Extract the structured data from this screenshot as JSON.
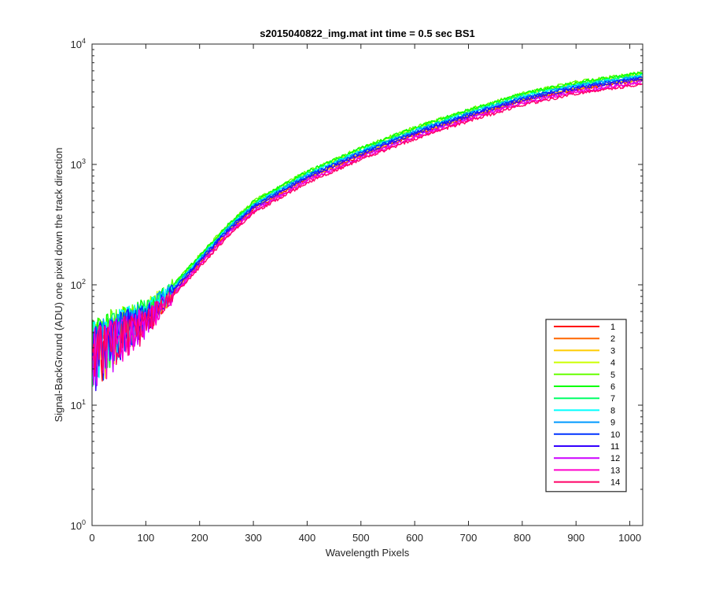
{
  "chart_data": {
    "type": "line",
    "title": "s2015040822_img.mat int time = 0.5 sec   BS1",
    "xlabel": "Wavelength Pixels",
    "ylabel": "Signal-BackGround (ADU) one pixel down the track direction",
    "xlim": [
      0,
      1024
    ],
    "ylim": [
      1,
      10000
    ],
    "yscale": "log",
    "grid": false,
    "legend_position": "lower-right",
    "x_ticks": [
      0,
      100,
      200,
      300,
      400,
      500,
      600,
      700,
      800,
      900,
      1000
    ],
    "y_ticks": [
      1,
      10,
      100,
      1000,
      10000
    ],
    "y_tick_labels": [
      {
        "base": "10",
        "exp": "0"
      },
      {
        "base": "10",
        "exp": "1"
      },
      {
        "base": "10",
        "exp": "2"
      },
      {
        "base": "10",
        "exp": "3"
      },
      {
        "base": "10",
        "exp": "4"
      }
    ],
    "profile_x": [
      0,
      50,
      100,
      150,
      200,
      250,
      300,
      400,
      500,
      600,
      700,
      800,
      900,
      1000,
      1024
    ],
    "profile_y": [
      30,
      42,
      55,
      90,
      160,
      280,
      450,
      800,
      1250,
      1850,
      2600,
      3550,
      4400,
      5100,
      5300
    ],
    "series": [
      {
        "name": "1",
        "color": "#ff0000",
        "scale": 0.95
      },
      {
        "name": "2",
        "color": "#ff6600",
        "scale": 0.96
      },
      {
        "name": "3",
        "color": "#ffcc00",
        "scale": 0.98
      },
      {
        "name": "4",
        "color": "#ccff00",
        "scale": 1.07
      },
      {
        "name": "5",
        "color": "#66ff00",
        "scale": 1.1
      },
      {
        "name": "6",
        "color": "#00ff00",
        "scale": 1.09
      },
      {
        "name": "7",
        "color": "#00ff66",
        "scale": 1.05
      },
      {
        "name": "8",
        "color": "#00ffff",
        "scale": 1.03
      },
      {
        "name": "9",
        "color": "#0099ff",
        "scale": 1.02
      },
      {
        "name": "10",
        "color": "#0033ff",
        "scale": 1.0
      },
      {
        "name": "11",
        "color": "#3300ff",
        "scale": 0.97
      },
      {
        "name": "12",
        "color": "#cc00ff",
        "scale": 0.92
      },
      {
        "name": "13",
        "color": "#ff00cc",
        "scale": 0.9
      },
      {
        "name": "14",
        "color": "#ff0066",
        "scale": 0.88
      }
    ]
  }
}
